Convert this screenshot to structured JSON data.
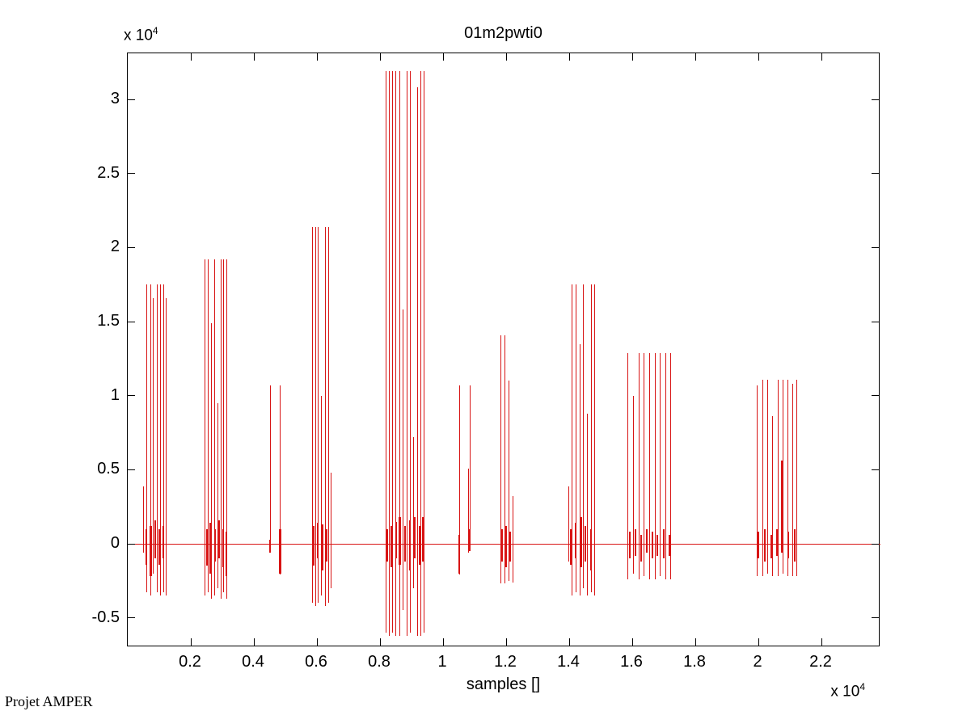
{
  "figure": {
    "background": "#ffffff"
  },
  "watermark": "Projet AMPER",
  "chart_data": {
    "type": "stem",
    "title": "01m2pwti0",
    "xlabel": "samples []",
    "ylabel": "",
    "x_scale_note": {
      "base": "x 10",
      "exp": "4"
    },
    "y_scale_note": {
      "base": "x 10",
      "exp": "4"
    },
    "xlim": [
      0,
      2.39
    ],
    "ylim": [
      -0.7,
      3.31
    ],
    "grid": false,
    "legend": false,
    "line_color": "#d81414",
    "axis_color": "#000000",
    "x_ticks": [
      {
        "v": 0.2,
        "label": "0.2"
      },
      {
        "v": 0.4,
        "label": "0.4"
      },
      {
        "v": 0.6,
        "label": "0.6"
      },
      {
        "v": 0.8,
        "label": "0.8"
      },
      {
        "v": 1.0,
        "label": "1"
      },
      {
        "v": 1.2,
        "label": "1.2"
      },
      {
        "v": 1.4,
        "label": "1.4"
      },
      {
        "v": 1.6,
        "label": "1.6"
      },
      {
        "v": 1.8,
        "label": "1.8"
      },
      {
        "v": 2.0,
        "label": "2"
      },
      {
        "v": 2.2,
        "label": "2.2"
      }
    ],
    "y_ticks": [
      {
        "v": 3.0,
        "label": "3"
      },
      {
        "v": 2.5,
        "label": "2.5"
      },
      {
        "v": 2.0,
        "label": "2"
      },
      {
        "v": 1.5,
        "label": "1.5"
      },
      {
        "v": 1.0,
        "label": "1"
      },
      {
        "v": 0.5,
        "label": "0.5"
      },
      {
        "v": 0.0,
        "label": "0"
      },
      {
        "v": -0.5,
        "label": "-0.5"
      }
    ],
    "units_note": "x in 1e4 samples, y in 1e4 amplitude",
    "line_format": "[x, y_top, y_bottom]",
    "noise_format": "[x, y_top, y_bottom, width_px]",
    "bursts": [
      {
        "name": "burst-1",
        "lines": [
          [
            0.05,
            0.39,
            -0.06
          ],
          [
            0.061,
            1.75,
            -0.33
          ],
          [
            0.072,
            1.75,
            -0.35
          ],
          [
            0.082,
            1.66,
            -0.2
          ],
          [
            0.093,
            1.75,
            -0.33
          ],
          [
            0.104,
            1.75,
            -0.35
          ],
          [
            0.115,
            1.75,
            -0.33
          ],
          [
            0.121,
            1.66,
            -0.35
          ]
        ],
        "noise": [
          [
            0.058,
            0.1,
            -0.14,
            2
          ],
          [
            0.073,
            0.12,
            -0.22,
            3
          ],
          [
            0.086,
            0.16,
            -0.1,
            2
          ],
          [
            0.1,
            0.1,
            -0.14,
            2
          ],
          [
            0.113,
            0.12,
            -0.1,
            2
          ]
        ]
      },
      {
        "name": "burst-2",
        "lines": [
          [
            0.244,
            1.92,
            -0.35
          ],
          [
            0.256,
            1.92,
            -0.33
          ],
          [
            0.266,
            1.49,
            -0.37
          ],
          [
            0.275,
            1.92,
            -0.35
          ],
          [
            0.285,
            0.95,
            -0.3
          ],
          [
            0.296,
            1.92,
            -0.37
          ],
          [
            0.305,
            1.92,
            -0.33
          ],
          [
            0.314,
            1.92,
            -0.37
          ]
        ],
        "noise": [
          [
            0.25,
            0.1,
            -0.15,
            2
          ],
          [
            0.262,
            0.14,
            -0.2,
            3
          ],
          [
            0.276,
            0.1,
            -0.12,
            2
          ],
          [
            0.29,
            0.16,
            -0.1,
            2
          ],
          [
            0.303,
            0.1,
            -0.16,
            2
          ],
          [
            0.312,
            0.08,
            -0.22,
            2
          ]
        ]
      },
      {
        "name": "burst-3",
        "lines": [
          [
            0.452,
            1.07,
            -0.04
          ],
          [
            0.484,
            1.07,
            -0.21
          ]
        ],
        "noise": [
          [
            0.452,
            0.03,
            -0.06,
            2
          ],
          [
            0.484,
            0.1,
            -0.2,
            3
          ]
        ]
      },
      {
        "name": "burst-4",
        "lines": [
          [
            0.585,
            2.14,
            -0.4
          ],
          [
            0.595,
            2.14,
            -0.42
          ],
          [
            0.605,
            2.14,
            -0.4
          ],
          [
            0.615,
            1.0,
            -0.35
          ],
          [
            0.626,
            2.14,
            -0.42
          ],
          [
            0.638,
            2.14,
            -0.4
          ],
          [
            0.645,
            0.48,
            -0.3
          ]
        ],
        "noise": [
          [
            0.59,
            0.12,
            -0.15,
            2
          ],
          [
            0.603,
            0.14,
            -0.1,
            2
          ],
          [
            0.616,
            0.13,
            -0.18,
            3
          ],
          [
            0.63,
            0.1,
            -0.12,
            2
          ]
        ]
      },
      {
        "name": "burst-5",
        "lines": [
          [
            0.818,
            3.19,
            -0.6
          ],
          [
            0.829,
            3.19,
            -0.62
          ],
          [
            0.84,
            3.19,
            -0.6
          ],
          [
            0.851,
            3.19,
            -0.62
          ],
          [
            0.862,
            3.19,
            -0.62
          ],
          [
            0.873,
            1.58,
            -0.45
          ],
          [
            0.885,
            3.19,
            -0.62
          ],
          [
            0.896,
            3.19,
            -0.6
          ],
          [
            0.907,
            0.72,
            -0.3
          ],
          [
            0.918,
            3.08,
            -0.62
          ],
          [
            0.929,
            3.19,
            -0.62
          ],
          [
            0.939,
            3.19,
            -0.6
          ]
        ],
        "noise": [
          [
            0.822,
            0.1,
            -0.12,
            2
          ],
          [
            0.836,
            0.12,
            -0.16,
            2
          ],
          [
            0.85,
            0.15,
            -0.1,
            2
          ],
          [
            0.864,
            0.18,
            -0.14,
            3
          ],
          [
            0.88,
            0.12,
            -0.12,
            2
          ],
          [
            0.895,
            0.16,
            -0.18,
            2
          ],
          [
            0.91,
            0.18,
            -0.1,
            3
          ],
          [
            0.925,
            0.12,
            -0.14,
            2
          ],
          [
            0.936,
            0.18,
            -0.12,
            2
          ]
        ]
      },
      {
        "name": "burst-6",
        "lines": [
          [
            1.052,
            1.07,
            -0.21
          ],
          [
            1.08,
            0.51,
            -0.06
          ],
          [
            1.087,
            1.07,
            -0.04
          ]
        ],
        "noise": [
          [
            1.052,
            0.06,
            -0.2,
            2
          ],
          [
            1.085,
            0.1,
            -0.05,
            2
          ]
        ]
      },
      {
        "name": "burst-7",
        "lines": [
          [
            1.183,
            1.41,
            -0.27
          ],
          [
            1.197,
            1.41,
            -0.27
          ],
          [
            1.21,
            1.1,
            -0.25
          ],
          [
            1.223,
            0.32,
            -0.26
          ]
        ],
        "noise": [
          [
            1.186,
            0.1,
            -0.12,
            2
          ],
          [
            1.2,
            0.12,
            -0.16,
            2
          ],
          [
            1.213,
            0.08,
            -0.12,
            2
          ]
        ]
      },
      {
        "name": "burst-8",
        "lines": [
          [
            1.399,
            0.39,
            -0.12
          ],
          [
            1.409,
            1.75,
            -0.35
          ],
          [
            1.422,
            1.75,
            -0.33
          ],
          [
            1.434,
            1.35,
            -0.35
          ],
          [
            1.446,
            1.75,
            -0.3
          ],
          [
            1.458,
            0.88,
            -0.35
          ],
          [
            1.47,
            1.75,
            -0.33
          ],
          [
            1.481,
            1.75,
            -0.35
          ]
        ],
        "noise": [
          [
            1.405,
            0.1,
            -0.14,
            2
          ],
          [
            1.42,
            0.14,
            -0.1,
            2
          ],
          [
            1.436,
            0.18,
            -0.16,
            3
          ],
          [
            1.452,
            0.12,
            -0.12,
            2
          ],
          [
            1.468,
            0.1,
            -0.18,
            2
          ]
        ]
      },
      {
        "name": "burst-9",
        "lines": [
          [
            1.587,
            1.29,
            -0.24
          ],
          [
            1.604,
            1.0,
            -0.2
          ],
          [
            1.621,
            1.29,
            -0.24
          ],
          [
            1.638,
            1.29,
            -0.22
          ],
          [
            1.655,
            1.29,
            -0.24
          ],
          [
            1.672,
            1.29,
            -0.24
          ],
          [
            1.689,
            1.29,
            -0.22
          ],
          [
            1.706,
            1.29,
            -0.24
          ],
          [
            1.723,
            1.29,
            -0.24
          ]
        ],
        "noise": [
          [
            1.592,
            0.08,
            -0.1,
            2
          ],
          [
            1.61,
            0.1,
            -0.08,
            2
          ],
          [
            1.628,
            0.06,
            -0.12,
            2
          ],
          [
            1.645,
            0.1,
            -0.06,
            2
          ],
          [
            1.663,
            0.08,
            -0.1,
            2
          ],
          [
            1.68,
            0.06,
            -0.08,
            2
          ],
          [
            1.7,
            0.1,
            -0.1,
            2
          ],
          [
            1.718,
            0.06,
            -0.08,
            2
          ]
        ]
      },
      {
        "name": "burst-10",
        "lines": [
          [
            1.995,
            1.07,
            -0.22
          ],
          [
            2.014,
            1.11,
            -0.22
          ],
          [
            2.029,
            1.11,
            -0.2
          ],
          [
            2.046,
            0.86,
            -0.22
          ],
          [
            2.062,
            1.11,
            -0.22
          ],
          [
            2.078,
            1.11,
            -0.2
          ],
          [
            2.093,
            1.11,
            -0.22
          ],
          [
            2.108,
            1.08,
            -0.22
          ],
          [
            2.123,
            1.11,
            -0.22
          ]
        ],
        "noise": [
          [
            2.0,
            0.08,
            -0.1,
            2
          ],
          [
            2.02,
            0.1,
            -0.12,
            2
          ],
          [
            2.04,
            0.06,
            -0.1,
            2
          ],
          [
            2.058,
            0.1,
            -0.08,
            2
          ],
          [
            2.075,
            0.56,
            -0.06,
            2
          ],
          [
            2.095,
            0.08,
            -0.1,
            2
          ],
          [
            2.115,
            0.1,
            -0.12,
            2
          ]
        ]
      }
    ]
  }
}
